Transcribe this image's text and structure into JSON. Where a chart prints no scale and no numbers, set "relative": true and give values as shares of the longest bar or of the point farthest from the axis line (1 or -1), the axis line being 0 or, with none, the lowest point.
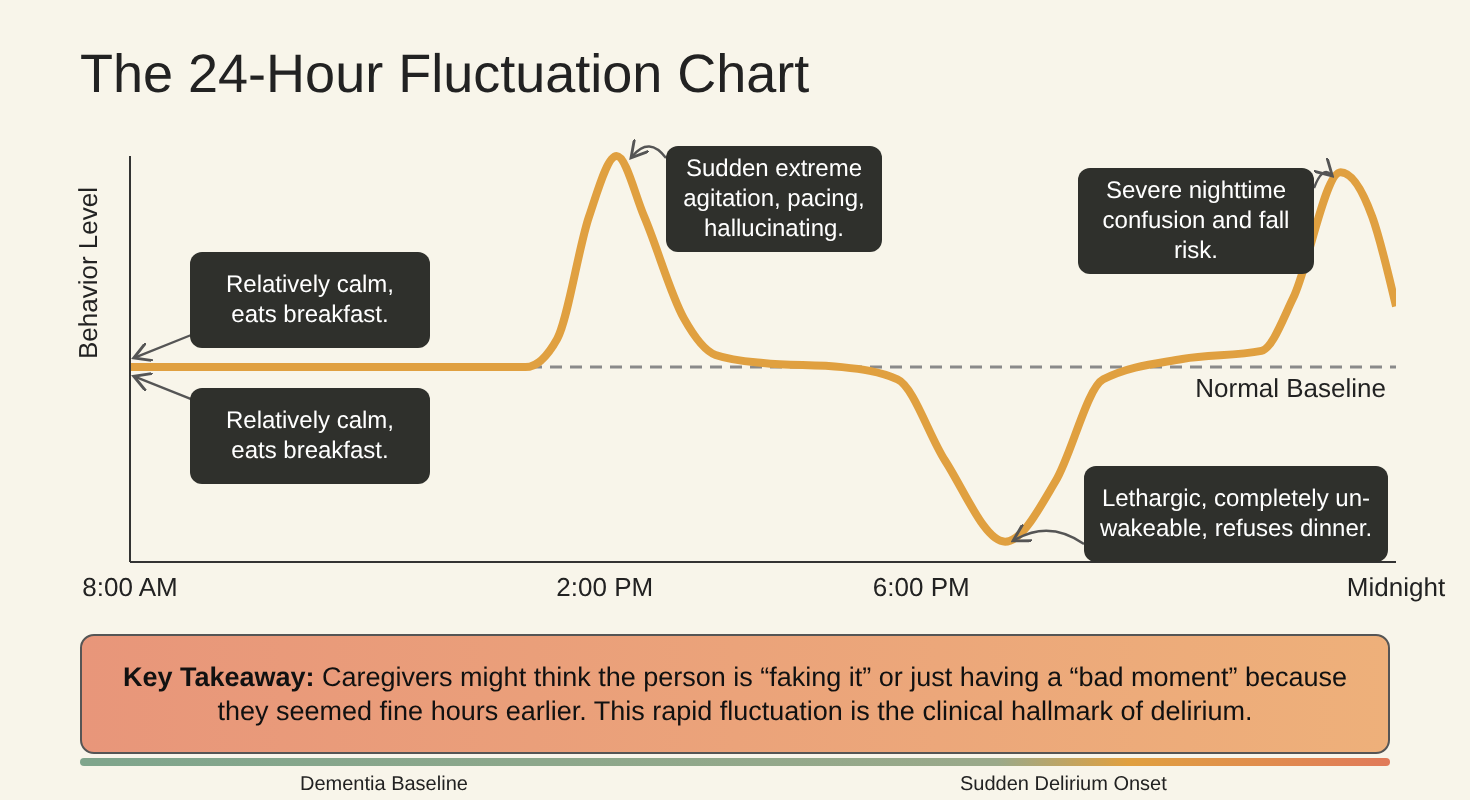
{
  "chart_data": {
    "type": "line",
    "title": "The 24-Hour Fluctuation Chart",
    "ylabel": "Behavior Level",
    "relative": true,
    "x": [
      8,
      13,
      13.4,
      13.8,
      14.15,
      14.5,
      15,
      15.4,
      16,
      17,
      17.7,
      18.3,
      19.06,
      19.7,
      20.3,
      21.3,
      22.3,
      22.7,
      23.3,
      23.7,
      24
    ],
    "series": [
      {
        "color": "#e0a040",
        "values": [
          0.48,
          0.48,
          0.55,
          0.85,
          1,
          0.85,
          0.6,
          0.51,
          0.49,
          0.48,
          0.45,
          0.25,
          0.05,
          0.2,
          0.45,
          0.5,
          0.52,
          0.65,
          0.96,
          0.85,
          0.63
        ]
      }
    ],
    "xlim": [
      8,
      24
    ],
    "xticks": [
      {
        "value": 8,
        "label": "8:00 AM"
      },
      {
        "value": 14,
        "label": "2:00 PM"
      },
      {
        "value": 18,
        "label": "6:00 PM"
      },
      {
        "value": 24,
        "label": "Midnight"
      }
    ],
    "marker": "none",
    "line_style": "solid",
    "ref_lines": [
      {
        "axis": "y",
        "value": 0.48,
        "label": "Normal Baseline",
        "color": "#8a8a8a",
        "line_style": "dashed"
      }
    ],
    "annotations": [
      {
        "text": "Relatively calm, eats breakfast.",
        "x": 8,
        "y": 0.48
      },
      {
        "text": "Relatively calm, eats breakfast.",
        "x": 8,
        "y": 0.48
      },
      {
        "text": "Sudden extreme agitation, pacing, hallucinating.",
        "x": 14.15,
        "y": 1
      },
      {
        "text": "Severe nighttime confusion and fall risk.",
        "x": 23.3,
        "y": 0.96
      },
      {
        "text": "Lethargic, completely un-wakeable, refuses dinner.",
        "x": 19.06,
        "y": 0.05
      },
      "Key Takeaway: Caregivers might think the person is “faking it” or just having a “bad moment” because they seemed fine hours earlier. This rapid fluctuation is the clinical hallmark of delirium.",
      "Dementia Baseline",
      "Sudden Delirium Onset"
    ]
  }
}
